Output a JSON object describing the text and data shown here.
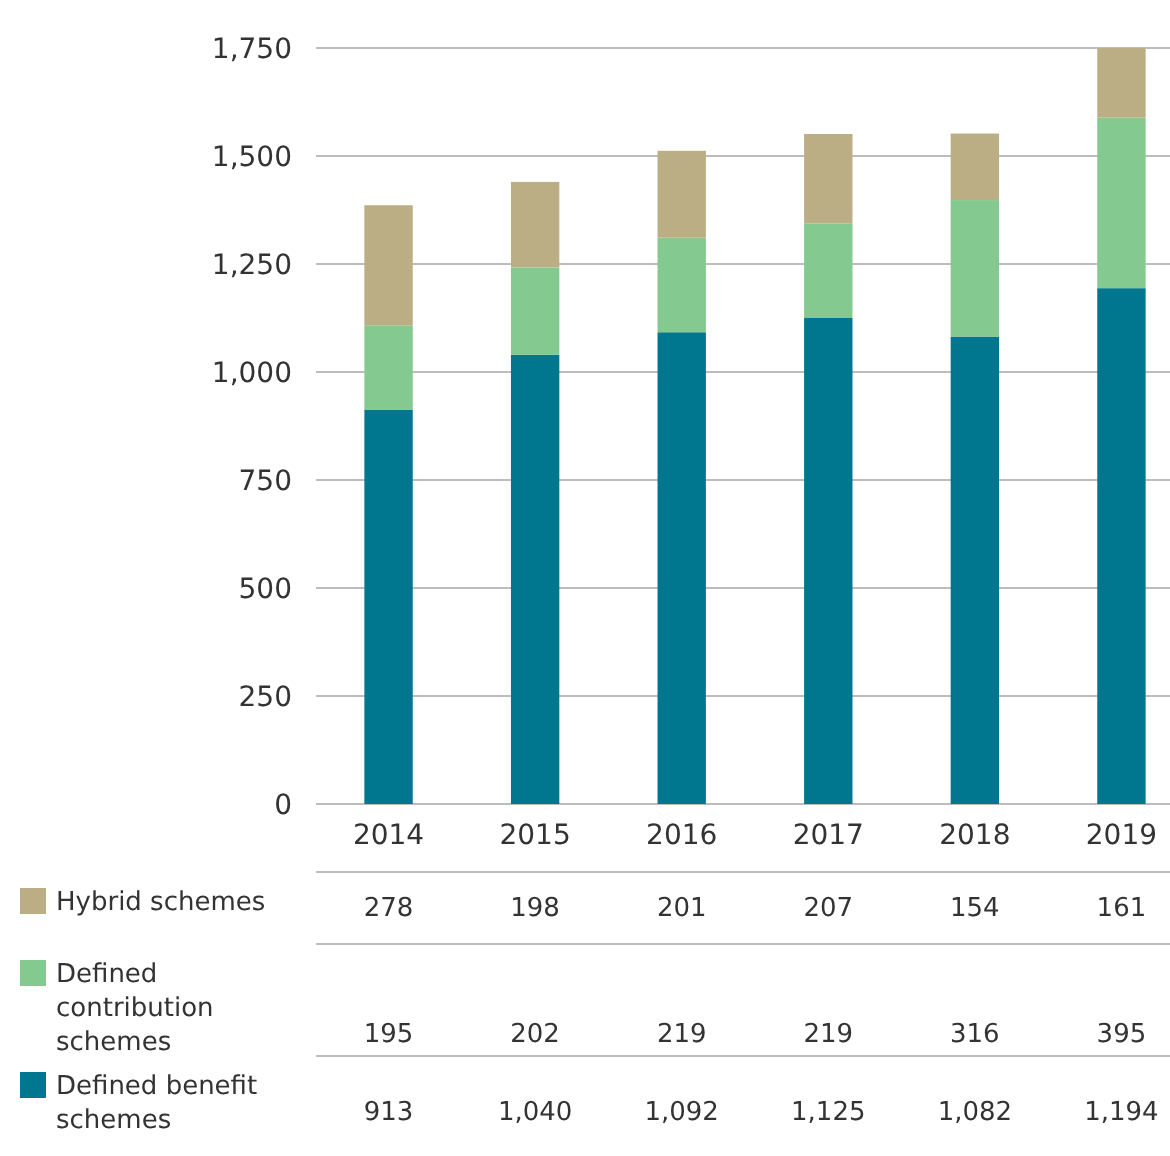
{
  "chart_data": {
    "type": "bar",
    "stacked": true,
    "categories": [
      "2014",
      "2015",
      "2016",
      "2017",
      "2018",
      "2019"
    ],
    "series": [
      {
        "name": "Defined benefit schemes",
        "color": "#00768f",
        "values": [
          913,
          1040,
          1092,
          1125,
          1082,
          1194
        ],
        "value_labels": [
          "913",
          "1,040",
          "1,092",
          "1,125",
          "1,082",
          "1,194"
        ]
      },
      {
        "name": "Defined contribution schemes",
        "color": "#84c98f",
        "values": [
          195,
          202,
          219,
          219,
          316,
          395
        ],
        "value_labels": [
          "195",
          "202",
          "219",
          "219",
          "316",
          "395"
        ]
      },
      {
        "name": "Hybrid schemes",
        "color": "#bcae84",
        "values": [
          278,
          198,
          201,
          207,
          154,
          161
        ],
        "value_labels": [
          "278",
          "198",
          "201",
          "207",
          "154",
          "161"
        ]
      }
    ],
    "ylim": [
      0,
      1750
    ],
    "yticks": [
      0,
      250,
      500,
      750,
      {
        "value": 1000,
        "label": "1,000"
      },
      {
        "value": 1250,
        "label": "1,250"
      },
      {
        "value": 1500,
        "label": "1,500"
      },
      {
        "value": 1750,
        "label": "1,750"
      }
    ],
    "grid": "y",
    "legend": "bottom"
  }
}
